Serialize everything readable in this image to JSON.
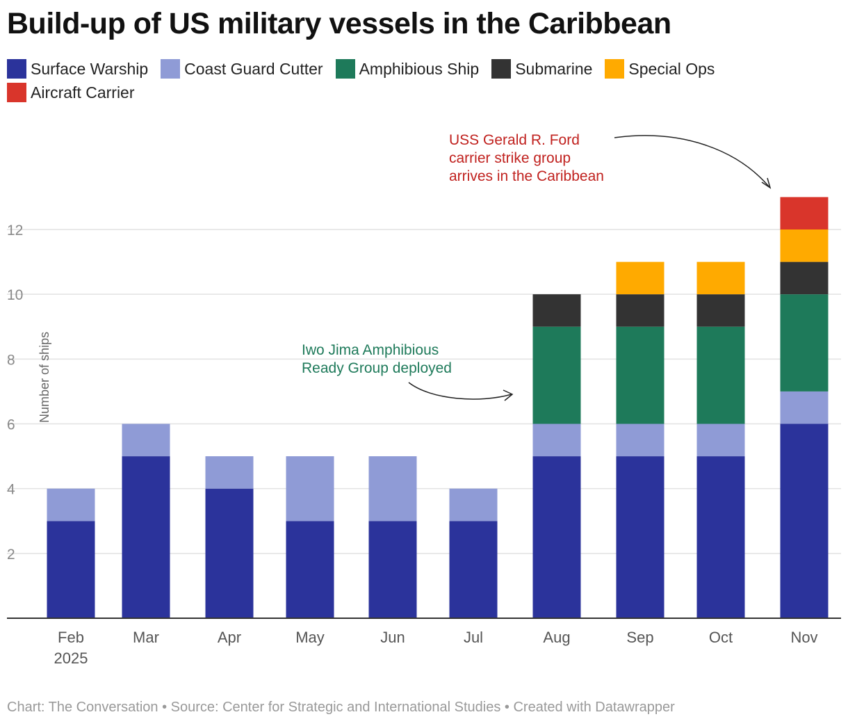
{
  "title": "Build-up of US military vessels in the Caribbean",
  "footer": "Chart: The Conversation • Source: Center for Strategic and International Studies • Created with Datawrapper",
  "chart_data": {
    "type": "bar",
    "stacked": true,
    "title": "Build-up of US military vessels in the Caribbean",
    "ylabel": "Number of ships",
    "ylim": [
      0,
      13
    ],
    "yticks": [
      2,
      4,
      6,
      8,
      10,
      12
    ],
    "grid": true,
    "legend_placement": "top",
    "categories": [
      "Feb",
      "Mar",
      "Apr",
      "May",
      "Jun",
      "Jul",
      "Aug",
      "Sep",
      "Oct",
      "Nov"
    ],
    "category_sublabels": [
      "2025",
      "",
      "",
      "",
      "",
      "",
      "",
      "",
      "",
      ""
    ],
    "series": [
      {
        "name": "Surface Warship",
        "color": "#2b339b",
        "values": [
          3,
          5,
          4,
          3,
          3,
          3,
          5,
          5,
          5,
          6
        ]
      },
      {
        "name": "Coast Guard Cutter",
        "color": "#8f9bd6",
        "values": [
          1,
          1,
          1,
          2,
          2,
          1,
          1,
          1,
          1,
          1
        ]
      },
      {
        "name": "Amphibious Ship",
        "color": "#1e7a5a",
        "values": [
          0,
          0,
          0,
          0,
          0,
          0,
          3,
          3,
          3,
          3
        ]
      },
      {
        "name": "Submarine",
        "color": "#333333",
        "values": [
          0,
          0,
          0,
          0,
          0,
          0,
          1,
          1,
          1,
          1
        ]
      },
      {
        "name": "Special Ops",
        "color": "#ffaa00",
        "values": [
          0,
          0,
          0,
          0,
          0,
          0,
          0,
          1,
          1,
          1
        ]
      },
      {
        "name": "Aircraft Carrier",
        "color": "#d9352b",
        "values": [
          0,
          0,
          0,
          0,
          0,
          0,
          0,
          0,
          0,
          1
        ]
      }
    ],
    "annotations": [
      {
        "text": [
          "USS Gerald R. Ford",
          "carrier strike group",
          "arrives in the Caribbean"
        ],
        "color": "#c0211e",
        "target": "Nov"
      },
      {
        "text": [
          "Iwo Jima Amphibious",
          "Ready Group deployed"
        ],
        "color": "#1e7a5a",
        "target": "Aug"
      }
    ]
  }
}
